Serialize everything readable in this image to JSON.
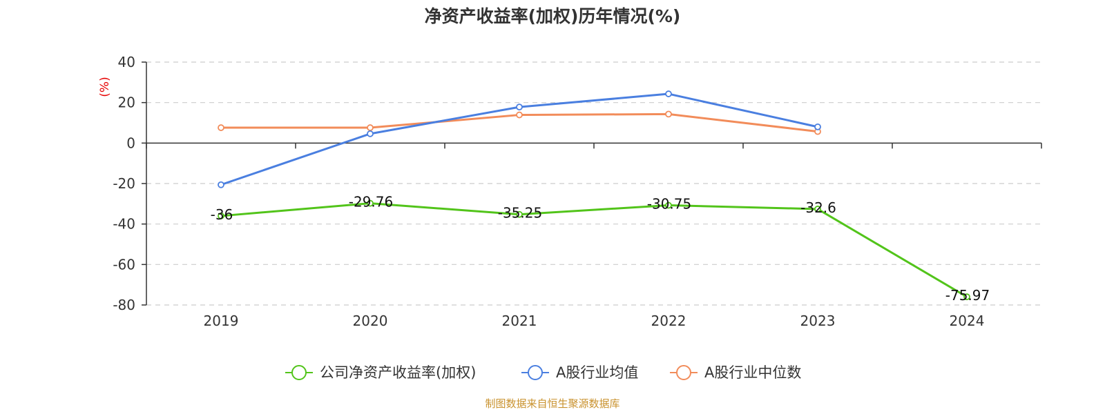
{
  "chart_data": {
    "type": "line",
    "title": "净资产收益率(加权)历年情况(%)",
    "ylabel": "(%)",
    "categories": [
      "2019",
      "2020",
      "2021",
      "2022",
      "2023",
      "2024"
    ],
    "ylim": [
      -80,
      40
    ],
    "yticks": [
      40,
      20,
      0,
      -20,
      -40,
      -60,
      -80
    ],
    "grid": true,
    "legend_position": "bottom",
    "series": [
      {
        "name": "公司净资产收益率(加权)",
        "color": "#52c41a",
        "values": [
          -36,
          -29.76,
          -35.25,
          -30.75,
          -32.6,
          -75.97
        ],
        "labels": [
          "-36",
          "-29.76",
          "-35.25",
          "-30.75",
          "-32.6",
          "-75.97"
        ],
        "show_labels": true
      },
      {
        "name": "A股行业均值",
        "color": "#4a7fe0",
        "values": [
          -20.6,
          4.6,
          17.8,
          24.3,
          8.0,
          null
        ],
        "show_labels": false
      },
      {
        "name": "A股行业中位数",
        "color": "#f28c5a",
        "values": [
          7.6,
          7.6,
          13.9,
          14.3,
          5.7,
          null
        ],
        "show_labels": false
      }
    ]
  },
  "source_text": "制图数据来自恒生聚源数据库",
  "colors": {
    "ylabel": "#e60000",
    "source": "#c9922e",
    "grid": "#cccccc",
    "axis": "#333333"
  }
}
